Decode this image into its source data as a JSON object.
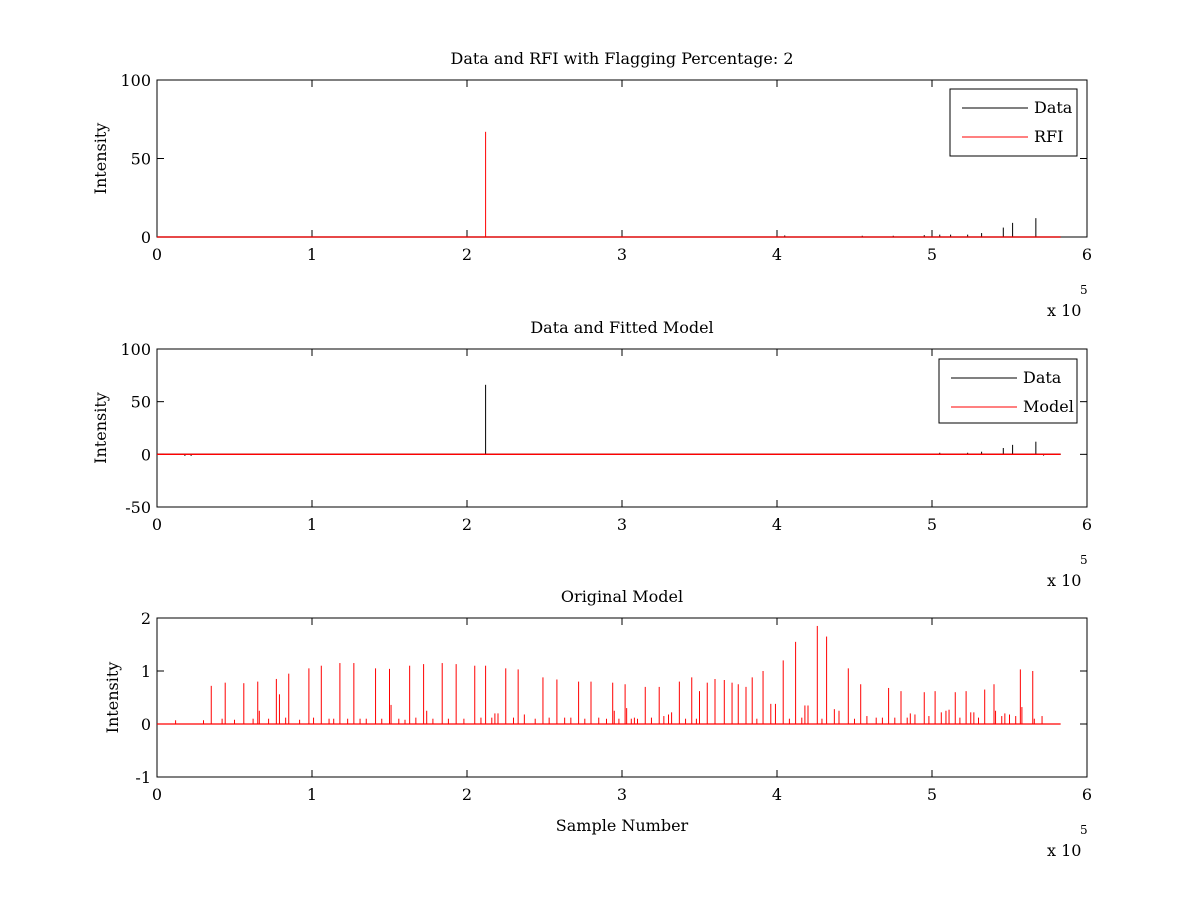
{
  "chart_data": [
    {
      "type": "line",
      "title": "Data and RFI with Flagging Percentage: 2",
      "xlabel": "",
      "ylabel": "Intensity",
      "xlim": [
        0,
        600000
      ],
      "ylim": [
        0,
        100
      ],
      "x_ticks": [
        0,
        1,
        2,
        3,
        4,
        5,
        6
      ],
      "y_ticks": [
        0,
        50,
        100
      ],
      "x_exponent": {
        "base": "x 10",
        "power": "5"
      },
      "legend": {
        "position": "top-right",
        "entries": [
          "Data",
          "RFI"
        ]
      },
      "series": [
        {
          "name": "Data",
          "color": "#000000",
          "baseline": 0,
          "spikes": [
            [
              405000,
              1
            ],
            [
              455000,
              0.8
            ],
            [
              475000,
              0.8
            ],
            [
              495000,
              1.2
            ],
            [
              505000,
              1.5
            ],
            [
              512000,
              1.5
            ],
            [
              523000,
              1.5
            ],
            [
              532000,
              2.5
            ],
            [
              546000,
              6
            ],
            [
              552000,
              9
            ],
            [
              567000,
              12
            ]
          ]
        },
        {
          "name": "RFI",
          "color": "#ff0000",
          "baseline": 0,
          "spikes": [
            [
              212000,
              67
            ]
          ]
        }
      ]
    },
    {
      "type": "line",
      "title": "Data and Fitted Model",
      "xlabel": "",
      "ylabel": "Intensity",
      "xlim": [
        0,
        600000
      ],
      "ylim": [
        -50,
        100
      ],
      "x_ticks": [
        0,
        1,
        2,
        3,
        4,
        5,
        6
      ],
      "y_ticks": [
        -50,
        0,
        50,
        100
      ],
      "x_exponent": {
        "base": "x 10",
        "power": "5"
      },
      "legend": {
        "position": "top-right",
        "entries": [
          "Data",
          "Model"
        ]
      },
      "series": [
        {
          "name": "Data",
          "color": "#000000",
          "baseline": 0,
          "spikes": [
            [
              212000,
              66
            ],
            [
              505000,
              1.5
            ],
            [
              523000,
              1.5
            ],
            [
              532000,
              2.5
            ],
            [
              546000,
              6
            ],
            [
              552000,
              9
            ],
            [
              567000,
              12
            ],
            [
              18000,
              -1.5
            ],
            [
              22000,
              -1.5
            ],
            [
              572000,
              -1.2
            ]
          ]
        },
        {
          "name": "Model",
          "color": "#ff0000",
          "baseline": 0,
          "spikes": []
        }
      ]
    },
    {
      "type": "line",
      "title": "Original Model",
      "xlabel": "Sample Number",
      "ylabel": "Intensity",
      "xlim": [
        0,
        600000
      ],
      "ylim": [
        -1,
        2
      ],
      "x_ticks": [
        0,
        1,
        2,
        3,
        4,
        5,
        6
      ],
      "y_ticks": [
        -1,
        0,
        1,
        2
      ],
      "x_exponent": {
        "base": "x 10",
        "power": "5"
      },
      "series": [
        {
          "color": "#ff0000",
          "baseline": 0,
          "spikes": [
            [
              12000,
              0.07
            ],
            [
              30000,
              0.07
            ],
            [
              35000,
              0.72
            ],
            [
              42000,
              0.1
            ],
            [
              44000,
              0.78
            ],
            [
              50000,
              0.08
            ],
            [
              56000,
              0.77
            ],
            [
              62000,
              0.1
            ],
            [
              65000,
              0.8
            ],
            [
              66000,
              0.25
            ],
            [
              72000,
              0.1
            ],
            [
              77000,
              0.85
            ],
            [
              79000,
              0.56
            ],
            [
              83000,
              0.12
            ],
            [
              85000,
              0.95
            ],
            [
              92000,
              0.08
            ],
            [
              98000,
              1.05
            ],
            [
              101000,
              0.12
            ],
            [
              106000,
              1.1
            ],
            [
              111000,
              0.1
            ],
            [
              114000,
              0.1
            ],
            [
              118000,
              1.15
            ],
            [
              123000,
              0.1
            ],
            [
              127000,
              1.15
            ],
            [
              131000,
              0.1
            ],
            [
              135000,
              0.1
            ],
            [
              141000,
              1.05
            ],
            [
              145000,
              0.1
            ],
            [
              150000,
              1.04
            ],
            [
              151000,
              0.36
            ],
            [
              156000,
              0.1
            ],
            [
              160000,
              0.08
            ],
            [
              163000,
              1.1
            ],
            [
              167000,
              0.12
            ],
            [
              172000,
              1.13
            ],
            [
              174000,
              0.25
            ],
            [
              178000,
              0.1
            ],
            [
              184000,
              1.15
            ],
            [
              188000,
              0.1
            ],
            [
              193000,
              1.13
            ],
            [
              198000,
              0.1
            ],
            [
              205000,
              1.1
            ],
            [
              209000,
              0.12
            ],
            [
              212000,
              1.1
            ],
            [
              216000,
              0.12
            ],
            [
              218000,
              0.2
            ],
            [
              220000,
              0.2
            ],
            [
              225000,
              1.05
            ],
            [
              230000,
              0.12
            ],
            [
              233000,
              1.03
            ],
            [
              237000,
              0.18
            ],
            [
              244000,
              0.1
            ],
            [
              249000,
              0.88
            ],
            [
              253000,
              0.12
            ],
            [
              258000,
              0.84
            ],
            [
              263000,
              0.12
            ],
            [
              267000,
              0.12
            ],
            [
              272000,
              0.8
            ],
            [
              276000,
              0.1
            ],
            [
              280000,
              0.8
            ],
            [
              285000,
              0.12
            ],
            [
              290000,
              0.1
            ],
            [
              294000,
              0.78
            ],
            [
              295000,
              0.25
            ],
            [
              298000,
              0.1
            ],
            [
              302000,
              0.75
            ],
            [
              303000,
              0.3
            ],
            [
              306000,
              0.1
            ],
            [
              308000,
              0.12
            ],
            [
              310000,
              0.1
            ],
            [
              315000,
              0.7
            ],
            [
              319000,
              0.12
            ],
            [
              324000,
              0.7
            ],
            [
              327000,
              0.15
            ],
            [
              330000,
              0.18
            ],
            [
              332000,
              0.22
            ],
            [
              337000,
              0.8
            ],
            [
              341000,
              0.1
            ],
            [
              345000,
              0.88
            ],
            [
              348000,
              0.1
            ],
            [
              350000,
              0.62
            ],
            [
              355000,
              0.78
            ],
            [
              360000,
              0.85
            ],
            [
              366000,
              0.83
            ],
            [
              371000,
              0.78
            ],
            [
              375000,
              0.75
            ],
            [
              380000,
              0.7
            ],
            [
              384000,
              0.88
            ],
            [
              387000,
              0.1
            ],
            [
              391000,
              1.0
            ],
            [
              396000,
              0.38
            ],
            [
              399000,
              0.38
            ],
            [
              404000,
              1.2
            ],
            [
              408000,
              0.1
            ],
            [
              412000,
              1.55
            ],
            [
              416000,
              0.12
            ],
            [
              418000,
              0.35
            ],
            [
              420000,
              0.35
            ],
            [
              426000,
              1.85
            ],
            [
              429000,
              0.1
            ],
            [
              432000,
              1.65
            ],
            [
              437000,
              0.28
            ],
            [
              440000,
              0.25
            ],
            [
              446000,
              1.05
            ],
            [
              450000,
              0.1
            ],
            [
              454000,
              0.75
            ],
            [
              458000,
              0.15
            ],
            [
              464000,
              0.12
            ],
            [
              468000,
              0.12
            ],
            [
              472000,
              0.68
            ],
            [
              476000,
              0.12
            ],
            [
              480000,
              0.62
            ],
            [
              484000,
              0.12
            ],
            [
              486000,
              0.2
            ],
            [
              489000,
              0.18
            ],
            [
              495000,
              0.6
            ],
            [
              498000,
              0.15
            ],
            [
              502000,
              0.62
            ],
            [
              506000,
              0.22
            ],
            [
              509000,
              0.25
            ],
            [
              511000,
              0.27
            ],
            [
              515000,
              0.6
            ],
            [
              518000,
              0.12
            ],
            [
              522000,
              0.62
            ],
            [
              525000,
              0.22
            ],
            [
              527000,
              0.22
            ],
            [
              530000,
              0.12
            ],
            [
              534000,
              0.65
            ],
            [
              540000,
              0.75
            ],
            [
              541000,
              0.25
            ],
            [
              545000,
              0.15
            ],
            [
              547000,
              0.2
            ],
            [
              550000,
              0.18
            ],
            [
              554000,
              0.15
            ],
            [
              557000,
              1.03
            ],
            [
              558000,
              0.32
            ],
            [
              565000,
              1.0
            ],
            [
              566000,
              0.1
            ],
            [
              571000,
              0.15
            ]
          ]
        }
      ]
    }
  ]
}
